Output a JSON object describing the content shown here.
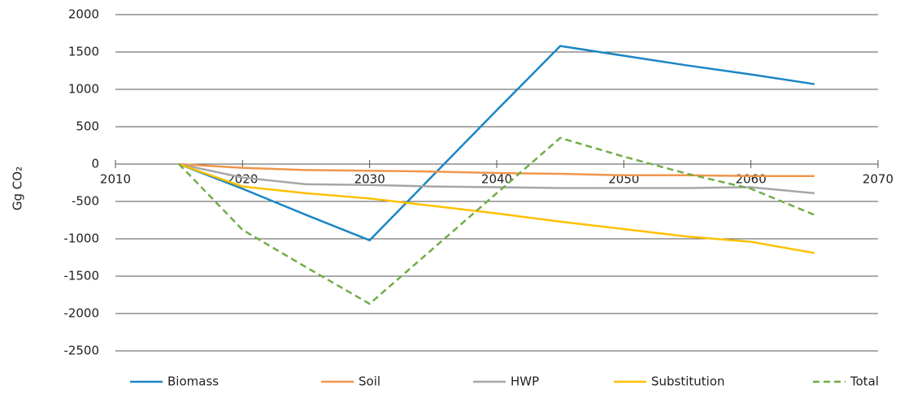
{
  "chart_data": {
    "type": "line",
    "y_label": "Gg CO₂",
    "x": [
      2015,
      2020,
      2025,
      2030,
      2035,
      2040,
      2045,
      2050,
      2055,
      2060,
      2065
    ],
    "series": [
      {
        "name": "Biomass",
        "color": "#1a86c4",
        "values": [
          0,
          -330,
          -680,
          -1020,
          -150,
          720,
          1580,
          1450,
          1320,
          1200,
          1070
        ]
      },
      {
        "name": "Soil",
        "color": "#f0964a",
        "values": [
          0,
          -50,
          -80,
          -90,
          -100,
          -120,
          -130,
          -150,
          -150,
          -160,
          -160
        ]
      },
      {
        "name": "HWP",
        "color": "#a6a6a6",
        "values": [
          0,
          -180,
          -270,
          -280,
          -300,
          -310,
          -320,
          -320,
          -320,
          -310,
          -390
        ]
      },
      {
        "name": "Substitution",
        "color": "#ffc000",
        "values": [
          0,
          -300,
          -390,
          -460,
          -560,
          -660,
          -770,
          -870,
          -970,
          -1040,
          -1190
        ]
      },
      {
        "name": "Total",
        "color": "#70ad47",
        "dashed": true,
        "values": [
          0,
          -880,
          -1380,
          -1870,
          -1130,
          -390,
          350,
          100,
          -130,
          -330,
          -680
        ]
      }
    ],
    "xlim": [
      2010,
      2070
    ],
    "xticks": [
      2010,
      2020,
      2030,
      2040,
      2050,
      2060,
      2070
    ],
    "ylim": [
      -2500,
      2000
    ],
    "yticks": [
      -2500,
      -2000,
      -1500,
      -1000,
      -500,
      0,
      500,
      1000,
      1500,
      2000
    ],
    "grid": true,
    "legend": "bottom"
  }
}
